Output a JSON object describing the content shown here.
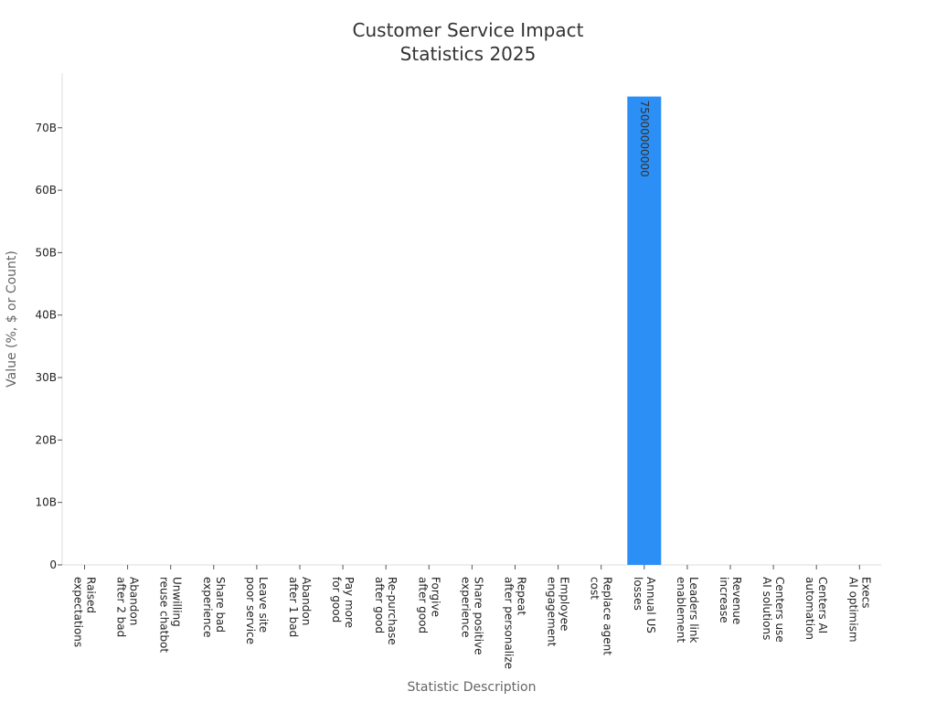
{
  "chart_data": {
    "type": "bar",
    "title": [
      "Customer Service Impact",
      "Statistics 2025"
    ],
    "xlabel": "Statistic Description",
    "ylabel": "Value (%, $ or Count)",
    "ylim": [
      0,
      78750000000
    ],
    "yticks": [
      0,
      10000000000,
      20000000000,
      30000000000,
      40000000000,
      50000000000,
      60000000000,
      70000000000
    ],
    "ytick_labels": [
      "0",
      "10B",
      "20B",
      "30B",
      "40B",
      "50B",
      "60B",
      "70B"
    ],
    "grid": false,
    "bar_color": "#2b8ff5",
    "categories": [
      [
        "Raised",
        "expectations"
      ],
      [
        "Abandon",
        "after 2 bad"
      ],
      [
        "Unwilling",
        "reuse chatbot"
      ],
      [
        "Share bad",
        "experience"
      ],
      [
        "Leave site",
        "poor service"
      ],
      [
        "Abandon",
        "after 1 bad"
      ],
      [
        "Pay more",
        "for good"
      ],
      [
        "Re-purchase",
        "after good"
      ],
      [
        "Forgive",
        "after good"
      ],
      [
        "Share positive",
        "experience"
      ],
      [
        "Repeat",
        "after personalize"
      ],
      [
        "Employee",
        "engagement"
      ],
      [
        "Replace agent",
        "cost"
      ],
      [
        "Annual US",
        "losses"
      ],
      [
        "Leaders link",
        "enablement"
      ],
      [
        "Revenue",
        "increase"
      ],
      [
        "Centers use",
        "AI solutions"
      ],
      [
        "Centers AI",
        "automation"
      ],
      [
        "Execs",
        "AI optimism"
      ]
    ],
    "values": [
      0,
      0,
      0,
      0,
      0,
      0,
      0,
      0,
      0,
      0,
      0,
      0,
      0,
      75000000000,
      0,
      0,
      0,
      0,
      0
    ],
    "data_labels": [
      "",
      "",
      "",
      "",
      "",
      "",
      "",
      "",
      "",
      "",
      "",
      "",
      "",
      "75000000000",
      "",
      "",
      "",
      "",
      ""
    ]
  }
}
